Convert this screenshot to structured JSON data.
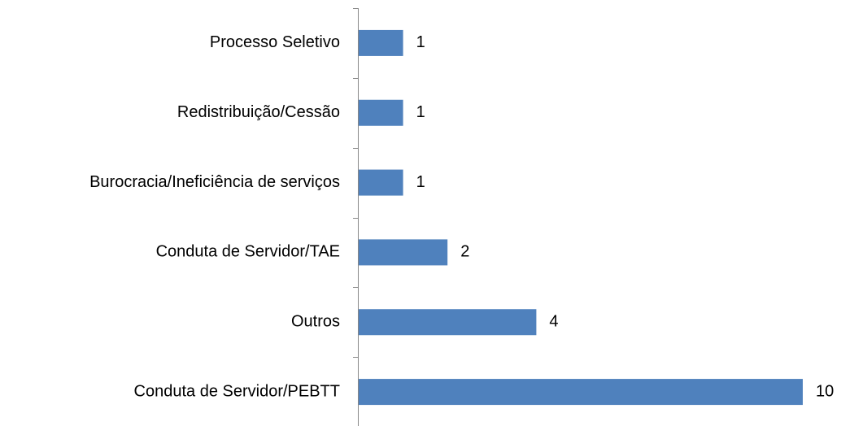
{
  "chart_data": {
    "type": "bar",
    "orientation": "horizontal",
    "categories": [
      "Processo Seletivo",
      "Redistribuição/Cessão",
      "Burocracia/Ineficiência de serviços",
      "Conduta de Servidor/TAE",
      "Outros",
      "Conduta de Servidor/PEBTT"
    ],
    "values": [
      1,
      1,
      1,
      2,
      4,
      10
    ],
    "color": "#4f81bd"
  }
}
